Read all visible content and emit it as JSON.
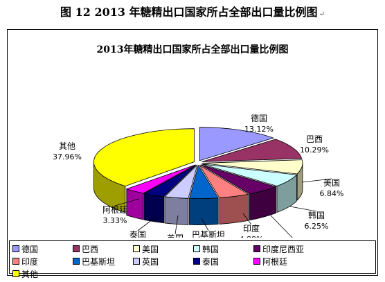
{
  "caption": {
    "text": "图 12  2013 年糖精出口国家所占全部出口量比例图",
    "mark": "↵"
  },
  "chart_data": {
    "type": "pie",
    "title": "2013年糖精出口国家所占全部出口量比例图",
    "style": "3d-exploded",
    "slices": [
      {
        "label": "德国",
        "value": 13.12,
        "value_label": "13.12%",
        "color": "#9999FF"
      },
      {
        "label": "巴西",
        "value": 10.29,
        "value_label": "10.29%",
        "color": "#993366"
      },
      {
        "label": "美国",
        "value": 6.84,
        "value_label": "6.84%",
        "color": "#FFFFCC"
      },
      {
        "label": "韩国",
        "value": 6.25,
        "value_label": "6.25%",
        "color": "#CCFFFF"
      },
      {
        "label": "印度尼西亚",
        "value": 5.43,
        "value_label": "5.43%",
        "color": "#660066"
      },
      {
        "label": "印度",
        "value": 4.88,
        "value_label": "4.88%",
        "color": "#FF8080"
      },
      {
        "label": "巴基斯坦",
        "value": 4.6,
        "value_label": "4.60%",
        "color": "#0066CC"
      },
      {
        "label": "英国",
        "value": 3.83,
        "value_label": "3.83%",
        "color": "#CCCCFF"
      },
      {
        "label": "泰国",
        "value": 3.47,
        "value_label": "3.47%",
        "color": "#000080"
      },
      {
        "label": "阿根廷",
        "value": 3.33,
        "value_label": "3.33%",
        "color": "#FF00FF"
      },
      {
        "label": "其他",
        "value": 37.96,
        "value_label": "37.96%",
        "color": "#FFFF00"
      }
    ],
    "legend": {
      "placement": "bottom",
      "order": [
        "德国",
        "巴西",
        "美国",
        "韩国",
        "印度尼西亚",
        "印度",
        "巴基斯坦",
        "英国",
        "泰国",
        "阿根廷",
        "其他"
      ]
    }
  }
}
